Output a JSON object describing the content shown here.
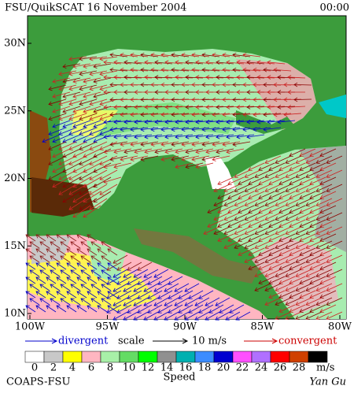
{
  "header": {
    "title": "FSU/QuikSCAT 16 November 2004",
    "time": "00:00"
  },
  "axes": {
    "lat_labels": [
      "30N",
      "25N",
      "20N",
      "15N",
      "10N"
    ],
    "lon_labels": [
      "100W",
      "95W",
      "90W",
      "85W",
      "80W"
    ]
  },
  "legend": {
    "divergent": "divergent",
    "scale": "scale",
    "scale_value": "10 m/s",
    "convergent": "convergent"
  },
  "colorbar": {
    "labels": [
      "0",
      "2",
      "4",
      "6",
      "8",
      "10",
      "12",
      "14",
      "16",
      "18",
      "20",
      "22",
      "24",
      "26",
      "28"
    ],
    "unit": "m/s",
    "title": "Speed",
    "colors": [
      "#ffffff",
      "#c8c8c8",
      "#ffff00",
      "#ffb6c1",
      "#a8f0a8",
      "#64dc64",
      "#00ff00",
      "#909090",
      "#00b0b0",
      "#3c8cff",
      "#0000d0",
      "#ff50ff",
      "#b070ff",
      "#ff0000",
      "#d04000",
      "#000000"
    ]
  },
  "footer": {
    "left": "COAPS-FSU",
    "right": "Yan Gu"
  }
}
